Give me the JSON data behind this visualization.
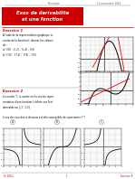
{
  "title_text": "Exos de derivabilite\net une fonction",
  "title_bg": "#cc0000",
  "title_fg": "#ffffff",
  "header_left": "Terminale",
  "header_date": "12 novembre 2014",
  "exercise1_label": "Exercice 1",
  "exercise2_label": "Exercice 2",
  "exercise2_question": "L'une des courbes ci-dessous est-elle susceptible de representer f' ?",
  "footer_left": "Tle 1ES-L",
  "footer_center": "1",
  "footer_right": "Exercice 8",
  "bg_color": "#ffffff",
  "text_color": "#000000",
  "red_color": "#cc0000",
  "gray_color": "#888888",
  "grid_color": "#cccccc",
  "light_bg": "#fafafa"
}
